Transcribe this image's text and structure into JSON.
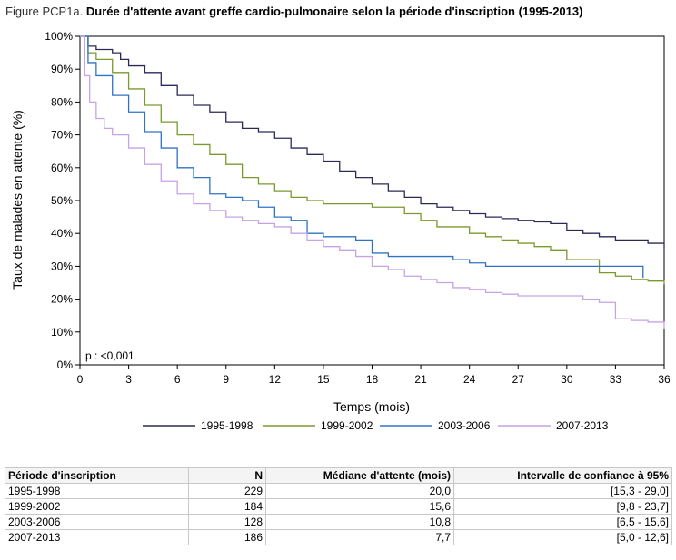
{
  "figure": {
    "label": "Figure PCP1a.",
    "title": "Durée d'attente avant greffe cardio-pulmonaire selon la période d'inscription (1995-2013)"
  },
  "chart_data": {
    "type": "line",
    "step": true,
    "xlabel": "Temps (mois)",
    "ylabel": "Taux de malades en attente (%)",
    "xlim": [
      0,
      36
    ],
    "ylim": [
      0,
      100
    ],
    "xticks": [
      "0",
      "3",
      "6",
      "9",
      "12",
      "15",
      "18",
      "21",
      "24",
      "27",
      "30",
      "33",
      "36"
    ],
    "yticks": [
      "0%",
      "10%",
      "20%",
      "30%",
      "40%",
      "50%",
      "60%",
      "70%",
      "80%",
      "90%",
      "100%"
    ],
    "annotation": "p : <0,001",
    "grid": false,
    "legend_position": "bottom",
    "series": [
      {
        "name": "1995-1998",
        "color": "#2b2a57",
        "points": [
          [
            0,
            100
          ],
          [
            0.5,
            97
          ],
          [
            1,
            96
          ],
          [
            2,
            95
          ],
          [
            2.5,
            93
          ],
          [
            3,
            91
          ],
          [
            4,
            89
          ],
          [
            5,
            85
          ],
          [
            6,
            82
          ],
          [
            7,
            79
          ],
          [
            8,
            77
          ],
          [
            9,
            74
          ],
          [
            10,
            72
          ],
          [
            11,
            71
          ],
          [
            12,
            69
          ],
          [
            13,
            66
          ],
          [
            14,
            64
          ],
          [
            15,
            62
          ],
          [
            16,
            59
          ],
          [
            17,
            57
          ],
          [
            18,
            55
          ],
          [
            19,
            53
          ],
          [
            20,
            51
          ],
          [
            21,
            49
          ],
          [
            22,
            48
          ],
          [
            23,
            47
          ],
          [
            24,
            46
          ],
          [
            25,
            45
          ],
          [
            26,
            44.5
          ],
          [
            27,
            44
          ],
          [
            28,
            43.5
          ],
          [
            29,
            43
          ],
          [
            30,
            41
          ],
          [
            31,
            40
          ],
          [
            32,
            39
          ],
          [
            33,
            38
          ],
          [
            34,
            38
          ],
          [
            35,
            37
          ],
          [
            36,
            35.5
          ]
        ]
      },
      {
        "name": "1999-2002",
        "color": "#7a9a2e",
        "points": [
          [
            0,
            100
          ],
          [
            0.5,
            95
          ],
          [
            1,
            93
          ],
          [
            2,
            89
          ],
          [
            3,
            84
          ],
          [
            4,
            79
          ],
          [
            5,
            74
          ],
          [
            6,
            70
          ],
          [
            7,
            67
          ],
          [
            8,
            64
          ],
          [
            9,
            61
          ],
          [
            10,
            57
          ],
          [
            11,
            55
          ],
          [
            12,
            53
          ],
          [
            13,
            51
          ],
          [
            14,
            50
          ],
          [
            15,
            49
          ],
          [
            16,
            49
          ],
          [
            17,
            49
          ],
          [
            18,
            48
          ],
          [
            19,
            48
          ],
          [
            20,
            46
          ],
          [
            21,
            44
          ],
          [
            22,
            42
          ],
          [
            23,
            42
          ],
          [
            24,
            40
          ],
          [
            25,
            39
          ],
          [
            26,
            38
          ],
          [
            27,
            37
          ],
          [
            28,
            36
          ],
          [
            29,
            35
          ],
          [
            30,
            32
          ],
          [
            31,
            32
          ],
          [
            32,
            28
          ],
          [
            33,
            27
          ],
          [
            34,
            26
          ],
          [
            35,
            25.5
          ],
          [
            36,
            24.5
          ]
        ]
      },
      {
        "name": "2003-2006",
        "color": "#2f73c6",
        "points": [
          [
            0,
            100
          ],
          [
            0.5,
            92
          ],
          [
            1,
            88
          ],
          [
            2,
            82
          ],
          [
            3,
            77
          ],
          [
            4,
            71
          ],
          [
            5,
            66
          ],
          [
            6,
            60
          ],
          [
            7,
            57
          ],
          [
            8,
            52
          ],
          [
            9,
            51
          ],
          [
            10,
            50
          ],
          [
            11,
            48
          ],
          [
            12,
            45
          ],
          [
            13,
            44
          ],
          [
            14,
            40
          ],
          [
            15,
            39
          ],
          [
            16,
            39
          ],
          [
            17,
            38
          ],
          [
            18,
            34
          ],
          [
            19,
            33
          ],
          [
            20,
            33
          ],
          [
            21,
            33
          ],
          [
            22,
            33
          ],
          [
            23,
            32
          ],
          [
            24,
            31
          ],
          [
            25,
            30
          ],
          [
            26,
            30
          ],
          [
            27,
            30
          ],
          [
            28,
            30
          ],
          [
            29,
            30
          ],
          [
            30,
            30
          ],
          [
            31,
            30
          ],
          [
            32,
            30
          ],
          [
            33,
            30
          ],
          [
            34,
            30
          ],
          [
            34.7,
            26.5
          ]
        ]
      },
      {
        "name": "2007-2013",
        "color": "#c6a3e6",
        "points": [
          [
            0,
            100
          ],
          [
            0.3,
            88
          ],
          [
            0.6,
            80
          ],
          [
            1,
            75
          ],
          [
            1.5,
            72
          ],
          [
            2,
            70
          ],
          [
            3,
            66
          ],
          [
            4,
            61
          ],
          [
            5,
            56
          ],
          [
            6,
            52
          ],
          [
            7,
            49
          ],
          [
            8,
            47
          ],
          [
            9,
            45
          ],
          [
            10,
            44
          ],
          [
            11,
            43
          ],
          [
            12,
            42
          ],
          [
            13,
            40
          ],
          [
            14,
            38
          ],
          [
            15,
            36
          ],
          [
            16,
            35
          ],
          [
            17,
            33
          ],
          [
            18,
            30
          ],
          [
            19,
            29
          ],
          [
            20,
            27
          ],
          [
            21,
            26
          ],
          [
            22,
            25
          ],
          [
            23,
            23.5
          ],
          [
            24,
            23
          ],
          [
            25,
            22
          ],
          [
            26,
            21.5
          ],
          [
            27,
            21
          ],
          [
            28,
            21
          ],
          [
            29,
            21
          ],
          [
            30,
            21
          ],
          [
            31,
            20
          ],
          [
            32,
            19
          ],
          [
            33,
            14
          ],
          [
            34,
            13.5
          ],
          [
            35,
            13
          ],
          [
            36,
            11
          ]
        ]
      }
    ]
  },
  "table": {
    "headers": [
      "Période d'inscription",
      "N",
      "Médiane d'attente (mois)",
      "Intervalle de confiance à 95%"
    ],
    "rows": [
      [
        "1995-1998",
        "229",
        "20,0",
        "[15,3 - 29,0]"
      ],
      [
        "1999-2002",
        "184",
        "15,6",
        "[9,8 - 23,7]"
      ],
      [
        "2003-2006",
        "128",
        "10,8",
        "[6,5 - 15,6]"
      ],
      [
        "2007-2013",
        "186",
        "7,7",
        "[5,0 - 12,6]"
      ]
    ]
  }
}
